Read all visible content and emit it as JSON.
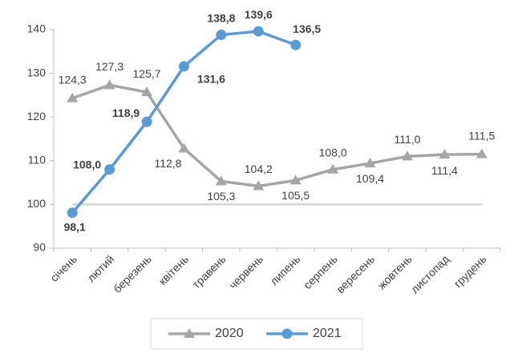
{
  "chart_data": {
    "type": "line",
    "categories": [
      "січень",
      "лютий",
      "березень",
      "квітень",
      "травень",
      "червень",
      "липень",
      "серпень",
      "вересень",
      "жовтень",
      "листопад",
      "грудень"
    ],
    "series": [
      {
        "name": "2020",
        "color": "#a5a5a5",
        "marker": "triangle",
        "values": [
          124.3,
          127.3,
          125.7,
          112.8,
          105.3,
          104.2,
          105.5,
          108.0,
          109.4,
          111.0,
          111.4,
          111.5
        ],
        "value_labels": [
          "124,3",
          "127,3",
          "125,7",
          "112,8",
          "105,3",
          "104,2",
          "105,5",
          "108,0",
          "109,4",
          "111,0",
          "111,4",
          "111,5"
        ]
      },
      {
        "name": "2021",
        "color": "#5b9bd5",
        "marker": "circle",
        "values": [
          98.1,
          108.0,
          118.9,
          131.6,
          138.8,
          139.6,
          136.5,
          null,
          null,
          null,
          null,
          null
        ],
        "value_labels": [
          "98,1",
          "108,0",
          "118,9",
          "131,6",
          "138,8",
          "139,6",
          "136,5",
          null,
          null,
          null,
          null,
          null
        ]
      }
    ],
    "reference_line": 100,
    "ylim": [
      90,
      140
    ],
    "yticks": [
      90,
      100,
      110,
      120,
      130,
      140
    ],
    "legend": "bottom"
  }
}
